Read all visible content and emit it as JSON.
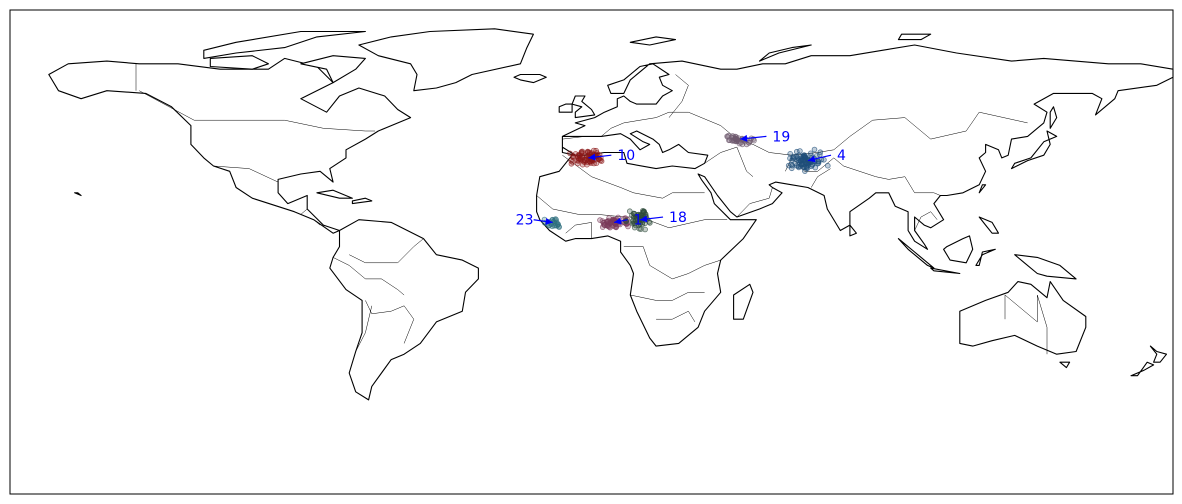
{
  "map": {
    "projection": "plate-carree",
    "extent": {
      "lon": [
        -180,
        180
      ],
      "lat": [
        -90,
        90
      ]
    },
    "land_color": "#ffffff",
    "coast_color": "#000000",
    "label_color": "#0000ff",
    "arrow_color": "#0000ff",
    "clusters": [
      {
        "label": "4",
        "lon": 67,
        "lat": 34,
        "label_lon": 76,
        "label_lat": 36,
        "color": "#1f4e79",
        "n": 90,
        "spread_lon": 5.5,
        "spread_lat": 3.5
      },
      {
        "label": "10",
        "lon": -1,
        "lat": 35,
        "label_lon": 8,
        "label_lat": 36,
        "color": "#8b1a1a",
        "n": 90,
        "spread_lon": 5.0,
        "spread_lat": 2.5
      },
      {
        "label": "19",
        "lon": 46,
        "lat": 42,
        "label_lon": 56,
        "label_lat": 43,
        "color": "#6e5a6e",
        "n": 45,
        "spread_lon": 4.0,
        "spread_lat": 2.0
      },
      {
        "label": "23",
        "lon": -12,
        "lat": 11,
        "label_lon": -21,
        "label_lat": 12,
        "color": "#2f6f7f",
        "n": 25,
        "spread_lon": 2.5,
        "spread_lat": 2.0
      },
      {
        "label": "1",
        "lon": 7,
        "lat": 11,
        "label_lon": 13,
        "label_lat": 12,
        "color": "#7a3b5a",
        "n": 60,
        "spread_lon": 4.5,
        "spread_lat": 2.2
      },
      {
        "label": "18",
        "lon": 15,
        "lat": 12,
        "label_lon": 24,
        "label_lat": 13,
        "color": "#2e4a3a",
        "n": 60,
        "spread_lon": 3.5,
        "spread_lat": 4.0
      }
    ]
  }
}
